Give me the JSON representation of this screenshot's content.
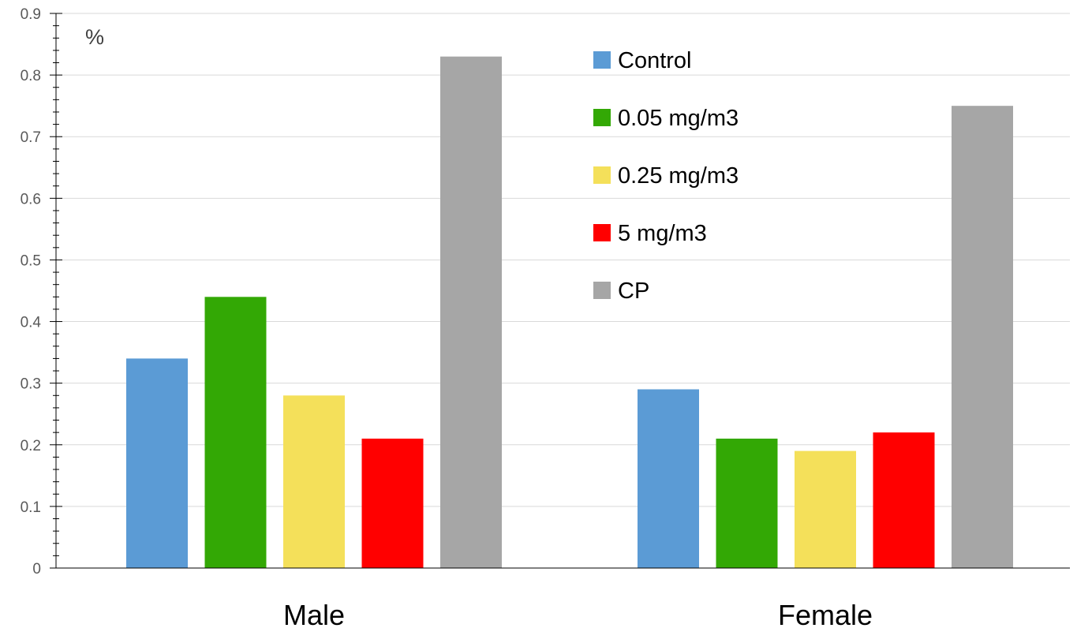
{
  "chart_data": {
    "type": "bar",
    "title": "",
    "xlabel": "",
    "ylabel": "",
    "unit_label": "%",
    "categories": [
      "Male",
      "Female"
    ],
    "series": [
      {
        "name": "Control",
        "color": "#5b9bd5",
        "values": [
          0.34,
          0.29
        ]
      },
      {
        "name": "0.05 mg/m3",
        "color": "#33a805",
        "values": [
          0.44,
          0.21
        ]
      },
      {
        "name": "0.25 mg/m3",
        "color": "#f4e05a",
        "values": [
          0.28,
          0.19
        ]
      },
      {
        "name": "5 mg/m3",
        "color": "#ff0000",
        "values": [
          0.21,
          0.22
        ]
      },
      {
        "name": "CP",
        "color": "#a6a6a6",
        "values": [
          0.83,
          0.75
        ]
      }
    ],
    "ylim": [
      0,
      0.9
    ],
    "yticks": [
      "0",
      "0.1",
      "0.2",
      "0.3",
      "0.4",
      "0.5",
      "0.6",
      "0.7",
      "0.8",
      "0.9"
    ],
    "grid": true,
    "legend_position": "top-center"
  }
}
